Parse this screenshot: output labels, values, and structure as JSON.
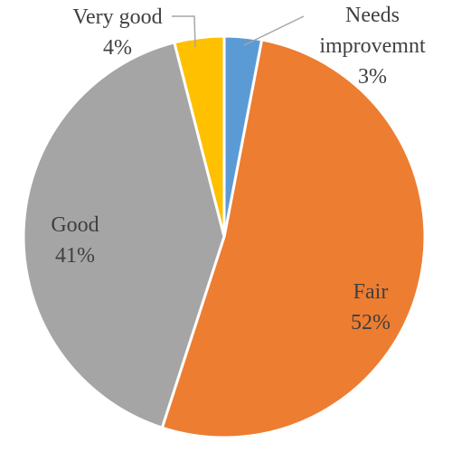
{
  "chart_data": {
    "type": "pie",
    "categories": [
      "Needs improvemnt",
      "Fair",
      "Good",
      "Very good"
    ],
    "values": [
      3,
      52,
      41,
      4
    ],
    "value_labels": [
      "3%",
      "52%",
      "41%",
      "4%"
    ],
    "colors": [
      "#5b9bd5",
      "#ed7d31",
      "#a5a5a5",
      "#ffc000"
    ]
  }
}
